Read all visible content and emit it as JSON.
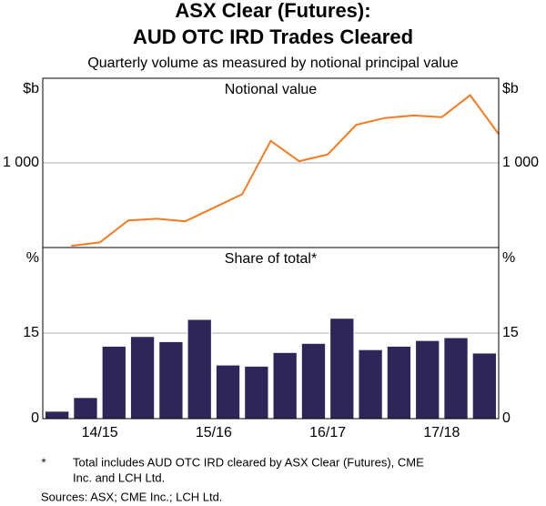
{
  "header": {
    "title": [
      "ASX Clear (Futures):",
      "AUD OTC IRD Trades Cleared"
    ],
    "subtitle": "Quarterly volume as measured by notional principal value"
  },
  "chart_data": [
    {
      "type": "line",
      "title": "Notional value",
      "y_unit": "$b",
      "color": "#f47b20",
      "values": [
        20,
        60,
        320,
        340,
        310,
        470,
        630,
        1260,
        1020,
        1100,
        1450,
        1530,
        1560,
        1540,
        1800,
        1340
      ],
      "ylim": [
        0,
        2000
      ],
      "yticks": [
        {
          "value": 1000,
          "label": "1 000"
        }
      ],
      "grid": true
    },
    {
      "type": "bar",
      "title": "Share of total*",
      "y_unit": "%",
      "color": "#2e2658",
      "categories": [
        null,
        "14/15",
        null,
        null,
        null,
        "15/16",
        null,
        null,
        null,
        "16/17",
        null,
        null,
        null,
        "17/18",
        null,
        null
      ],
      "values": [
        1.3,
        3.7,
        12.7,
        14.4,
        13.5,
        17.4,
        9.4,
        9.2,
        11.6,
        13.2,
        17.6,
        12.1,
        12.7,
        13.7,
        14.2,
        11.5
      ],
      "ylim": [
        0,
        30
      ],
      "yticks": [
        0,
        15
      ],
      "grid": true
    }
  ],
  "notes": {
    "marker": "*",
    "footnote": [
      "Total includes AUD OTC IRD cleared by ASX Clear (Futures), CME",
      "Inc. and LCH Ltd."
    ],
    "sources": "Sources: ASX; CME Inc.; LCH Ltd."
  }
}
